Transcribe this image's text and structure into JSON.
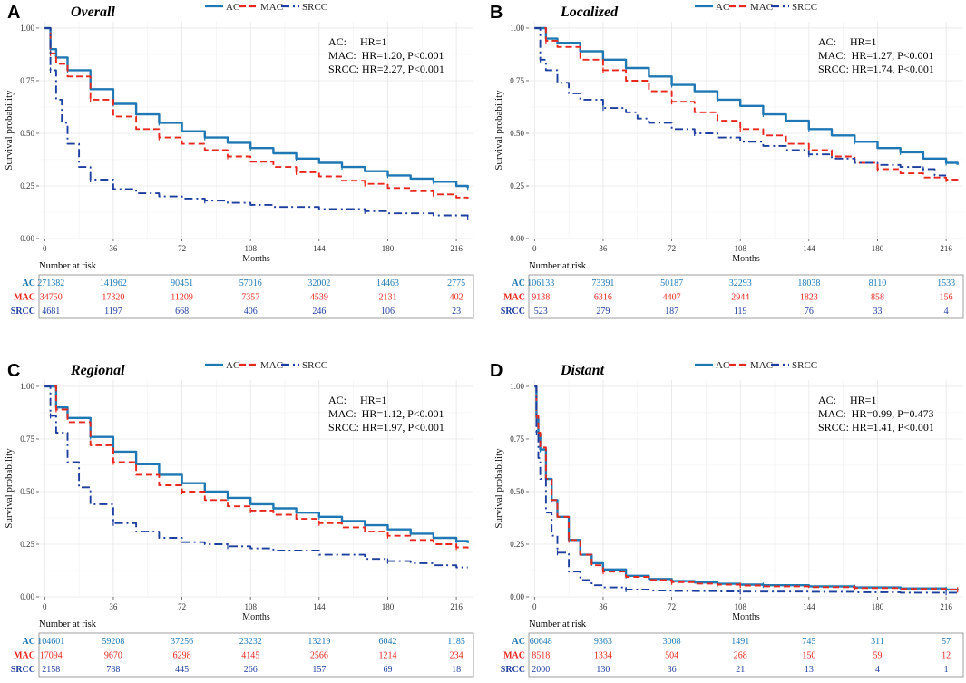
{
  "colors": {
    "AC": "#1f78b4",
    "MAC": "#e8281e",
    "SRCC": "#1f3f9e",
    "grid": "#e6e6e6",
    "axis": "#555555"
  },
  "risk_label": "Number at risk",
  "chart_data": [
    {
      "panel": "A",
      "title": "Overall",
      "type": "line",
      "legend": [
        "AC",
        "MAC",
        "SRCC"
      ],
      "xlabel": "Months",
      "ylabel": "Survival probability",
      "xticks": [
        0,
        36,
        72,
        108,
        144,
        180,
        216
      ],
      "yticks": [
        0,
        0.25,
        0.5,
        0.75,
        1
      ],
      "yticklabels": [
        "0.00",
        "0.25",
        "0.50",
        "0.75",
        "1.00"
      ],
      "xlim": [
        -3,
        225
      ],
      "ylim": [
        0,
        1.03
      ],
      "hr_lines": [
        "AC:     HR=1",
        "MAC:  HR=1.20, P<0.001",
        "SRCC: HR=2.27, P<0.001"
      ],
      "series": [
        {
          "name": "AC",
          "x": [
            0,
            3,
            6,
            12,
            24,
            36,
            48,
            60,
            72,
            84,
            96,
            108,
            120,
            132,
            144,
            156,
            168,
            180,
            192,
            204,
            216,
            222
          ],
          "y": [
            1,
            0.9,
            0.86,
            0.8,
            0.71,
            0.64,
            0.59,
            0.55,
            0.51,
            0.48,
            0.455,
            0.43,
            0.405,
            0.38,
            0.36,
            0.34,
            0.32,
            0.3,
            0.285,
            0.27,
            0.25,
            0.24
          ]
        },
        {
          "name": "MAC",
          "x": [
            0,
            3,
            6,
            12,
            24,
            36,
            48,
            60,
            72,
            84,
            96,
            108,
            120,
            132,
            144,
            156,
            168,
            180,
            192,
            204,
            216,
            222
          ],
          "y": [
            1,
            0.88,
            0.83,
            0.77,
            0.66,
            0.58,
            0.52,
            0.48,
            0.45,
            0.42,
            0.39,
            0.365,
            0.34,
            0.315,
            0.295,
            0.275,
            0.26,
            0.24,
            0.225,
            0.21,
            0.195,
            0.19
          ]
        },
        {
          "name": "SRCC",
          "x": [
            0,
            3,
            6,
            9,
            12,
            18,
            24,
            36,
            48,
            60,
            72,
            84,
            96,
            108,
            120,
            144,
            168,
            180,
            192,
            204,
            216,
            222
          ],
          "y": [
            1,
            0.8,
            0.66,
            0.55,
            0.45,
            0.34,
            0.28,
            0.235,
            0.215,
            0.2,
            0.19,
            0.18,
            0.17,
            0.16,
            0.15,
            0.14,
            0.13,
            0.12,
            0.12,
            0.11,
            0.11,
            0.1
          ]
        }
      ],
      "risk_table": {
        "times": [
          0,
          36,
          72,
          108,
          144,
          180,
          216
        ],
        "rows": [
          {
            "name": "AC",
            "counts": [
              "271382",
              "141962",
              "90451",
              "57016",
              "32002",
              "14463",
              "2775"
            ]
          },
          {
            "name": "MAC",
            "counts": [
              "34750",
              "17320",
              "11209",
              "7357",
              "4539",
              "2131",
              "402"
            ]
          },
          {
            "name": "SRCC",
            "counts": [
              "4681",
              "1197",
              "668",
              "406",
              "246",
              "106",
              "23"
            ]
          }
        ]
      }
    },
    {
      "panel": "B",
      "title": "Localized",
      "type": "line",
      "legend": [
        "AC",
        "MAC",
        "SRCC"
      ],
      "xlabel": "Months",
      "ylabel": "Survival probability",
      "xticks": [
        0,
        36,
        72,
        108,
        144,
        180,
        216
      ],
      "yticks": [
        0,
        0.25,
        0.5,
        0.75,
        1
      ],
      "yticklabels": [
        "0.00",
        "0.25",
        "0.50",
        "0.75",
        "1.00"
      ],
      "xlim": [
        -3,
        225
      ],
      "ylim": [
        0,
        1.03
      ],
      "hr_lines": [
        "AC:     HR=1",
        "MAC:  HR=1.27, P<0.001",
        "SRCC: HR=1.74, P<0.001"
      ],
      "series": [
        {
          "name": "AC",
          "x": [
            0,
            6,
            12,
            24,
            36,
            48,
            60,
            72,
            84,
            96,
            108,
            120,
            132,
            144,
            156,
            168,
            180,
            192,
            204,
            216,
            222
          ],
          "y": [
            1,
            0.95,
            0.93,
            0.89,
            0.85,
            0.81,
            0.77,
            0.73,
            0.7,
            0.66,
            0.63,
            0.59,
            0.56,
            0.52,
            0.49,
            0.46,
            0.43,
            0.41,
            0.38,
            0.36,
            0.35
          ]
        },
        {
          "name": "MAC",
          "x": [
            0,
            6,
            12,
            24,
            36,
            48,
            60,
            72,
            84,
            96,
            108,
            120,
            132,
            144,
            156,
            168,
            180,
            192,
            204,
            216,
            222
          ],
          "y": [
            1,
            0.94,
            0.91,
            0.85,
            0.8,
            0.75,
            0.7,
            0.65,
            0.6,
            0.56,
            0.52,
            0.49,
            0.45,
            0.42,
            0.39,
            0.36,
            0.33,
            0.31,
            0.29,
            0.28,
            0.27
          ]
        },
        {
          "name": "SRCC",
          "x": [
            0,
            3,
            6,
            12,
            18,
            24,
            36,
            48,
            54,
            60,
            72,
            84,
            96,
            108,
            120,
            132,
            144,
            156,
            168,
            180,
            192,
            204,
            210,
            216
          ],
          "y": [
            1,
            0.85,
            0.8,
            0.74,
            0.69,
            0.66,
            0.62,
            0.6,
            0.57,
            0.55,
            0.52,
            0.5,
            0.48,
            0.46,
            0.44,
            0.42,
            0.4,
            0.38,
            0.36,
            0.35,
            0.34,
            0.33,
            0.3,
            0.3
          ]
        }
      ],
      "risk_table": {
        "times": [
          0,
          36,
          72,
          108,
          144,
          180,
          216
        ],
        "rows": [
          {
            "name": "AC",
            "counts": [
              "106133",
              "73391",
              "50187",
              "32293",
              "18038",
              "8110",
              "1533"
            ]
          },
          {
            "name": "MAC",
            "counts": [
              "9138",
              "6316",
              "4407",
              "2944",
              "1823",
              "858",
              "156"
            ]
          },
          {
            "name": "SRCC",
            "counts": [
              "523",
              "279",
              "187",
              "119",
              "76",
              "33",
              "4"
            ]
          }
        ]
      }
    },
    {
      "panel": "C",
      "title": "Regional",
      "type": "line",
      "legend": [
        "AC",
        "MAC",
        "SRCC"
      ],
      "xlabel": "Months",
      "ylabel": "Survival probability",
      "xticks": [
        0,
        36,
        72,
        108,
        144,
        180,
        216
      ],
      "yticks": [
        0,
        0.25,
        0.5,
        0.75,
        1
      ],
      "yticklabels": [
        "0.00",
        "0.25",
        "0.50",
        "0.75",
        "1.00"
      ],
      "xlim": [
        -3,
        225
      ],
      "ylim": [
        0,
        1.03
      ],
      "hr_lines": [
        "AC:     HR=1",
        "MAC:  HR=1.12, P<0.001",
        "SRCC: HR=1.97, P<0.001"
      ],
      "series": [
        {
          "name": "AC",
          "x": [
            0,
            6,
            12,
            24,
            36,
            48,
            60,
            72,
            84,
            96,
            108,
            120,
            132,
            144,
            156,
            168,
            180,
            192,
            204,
            216,
            222
          ],
          "y": [
            1,
            0.9,
            0.85,
            0.76,
            0.69,
            0.63,
            0.58,
            0.54,
            0.5,
            0.47,
            0.44,
            0.42,
            0.4,
            0.38,
            0.36,
            0.34,
            0.32,
            0.3,
            0.28,
            0.265,
            0.255
          ]
        },
        {
          "name": "MAC",
          "x": [
            0,
            6,
            12,
            24,
            36,
            48,
            60,
            72,
            84,
            96,
            108,
            120,
            132,
            144,
            156,
            168,
            180,
            192,
            204,
            216,
            222
          ],
          "y": [
            1,
            0.89,
            0.83,
            0.72,
            0.64,
            0.58,
            0.53,
            0.5,
            0.46,
            0.43,
            0.41,
            0.39,
            0.37,
            0.35,
            0.33,
            0.31,
            0.29,
            0.27,
            0.25,
            0.235,
            0.225
          ]
        },
        {
          "name": "SRCC",
          "x": [
            0,
            3,
            6,
            12,
            18,
            24,
            36,
            48,
            60,
            72,
            84,
            96,
            108,
            120,
            144,
            168,
            180,
            192,
            204,
            216,
            222
          ],
          "y": [
            1,
            0.86,
            0.78,
            0.64,
            0.52,
            0.44,
            0.35,
            0.31,
            0.28,
            0.26,
            0.25,
            0.24,
            0.23,
            0.22,
            0.2,
            0.18,
            0.17,
            0.16,
            0.15,
            0.14,
            0.14
          ]
        }
      ],
      "risk_table": {
        "times": [
          0,
          36,
          72,
          108,
          144,
          180,
          216
        ],
        "rows": [
          {
            "name": "AC",
            "counts": [
              "104601",
              "59208",
              "37256",
              "23232",
              "13219",
              "6042",
              "1185"
            ]
          },
          {
            "name": "MAC",
            "counts": [
              "17094",
              "9670",
              "6298",
              "4145",
              "2566",
              "1214",
              "234"
            ]
          },
          {
            "name": "SRCC",
            "counts": [
              "2158",
              "788",
              "445",
              "266",
              "157",
              "69",
              "18"
            ]
          }
        ]
      }
    },
    {
      "panel": "D",
      "title": "Distant",
      "type": "line",
      "legend": [
        "AC",
        "MAC",
        "SRCC"
      ],
      "xlabel": "Months",
      "ylabel": "Survival probability",
      "xticks": [
        0,
        36,
        72,
        108,
        144,
        180,
        216
      ],
      "yticks": [
        0,
        0.25,
        0.5,
        0.75,
        1
      ],
      "yticklabels": [
        "0.00",
        "0.25",
        "0.50",
        "0.75",
        "1.00"
      ],
      "xlim": [
        -3,
        225
      ],
      "ylim": [
        0,
        1.03
      ],
      "hr_lines": [
        "AC:     HR=1",
        "MAC:  HR=0.99, P=0.473",
        "SRCC: HR=1.41, P<0.001"
      ],
      "series": [
        {
          "name": "AC",
          "x": [
            0,
            1,
            2,
            3,
            6,
            9,
            12,
            18,
            24,
            30,
            36,
            48,
            60,
            72,
            84,
            96,
            108,
            120,
            144,
            168,
            192,
            216,
            222
          ],
          "y": [
            1,
            0.85,
            0.77,
            0.7,
            0.56,
            0.46,
            0.38,
            0.27,
            0.2,
            0.16,
            0.13,
            0.1,
            0.085,
            0.075,
            0.068,
            0.062,
            0.058,
            0.055,
            0.05,
            0.045,
            0.04,
            0.035,
            0.033
          ]
        },
        {
          "name": "MAC",
          "x": [
            0,
            1,
            2,
            3,
            6,
            9,
            12,
            18,
            24,
            30,
            36,
            48,
            60,
            72,
            84,
            96,
            108,
            120,
            144,
            168,
            192,
            216,
            222
          ],
          "y": [
            1,
            0.86,
            0.78,
            0.71,
            0.56,
            0.46,
            0.38,
            0.27,
            0.2,
            0.15,
            0.12,
            0.095,
            0.08,
            0.07,
            0.063,
            0.058,
            0.054,
            0.05,
            0.046,
            0.042,
            0.038,
            0.035,
            0.033
          ]
        },
        {
          "name": "SRCC",
          "x": [
            0,
            1,
            2,
            3,
            6,
            9,
            12,
            18,
            24,
            30,
            36,
            48,
            60,
            72,
            84,
            96,
            108,
            120,
            144,
            168,
            192,
            216,
            222
          ],
          "y": [
            1,
            0.78,
            0.66,
            0.56,
            0.4,
            0.29,
            0.21,
            0.12,
            0.08,
            0.055,
            0.045,
            0.035,
            0.03,
            0.028,
            0.027,
            0.026,
            0.025,
            0.025,
            0.024,
            0.022,
            0.02,
            0.02,
            0.02
          ]
        }
      ],
      "risk_table": {
        "times": [
          0,
          36,
          72,
          108,
          144,
          180,
          216
        ],
        "rows": [
          {
            "name": "AC",
            "counts": [
              "60648",
              "9363",
              "3008",
              "1491",
              "745",
              "311",
              "57"
            ]
          },
          {
            "name": "MAC",
            "counts": [
              "8518",
              "1334",
              "504",
              "268",
              "150",
              "59",
              "12"
            ]
          },
          {
            "name": "SRCC",
            "counts": [
              "2000",
              "130",
              "36",
              "21",
              "13",
              "4",
              "1"
            ]
          }
        ]
      }
    }
  ]
}
